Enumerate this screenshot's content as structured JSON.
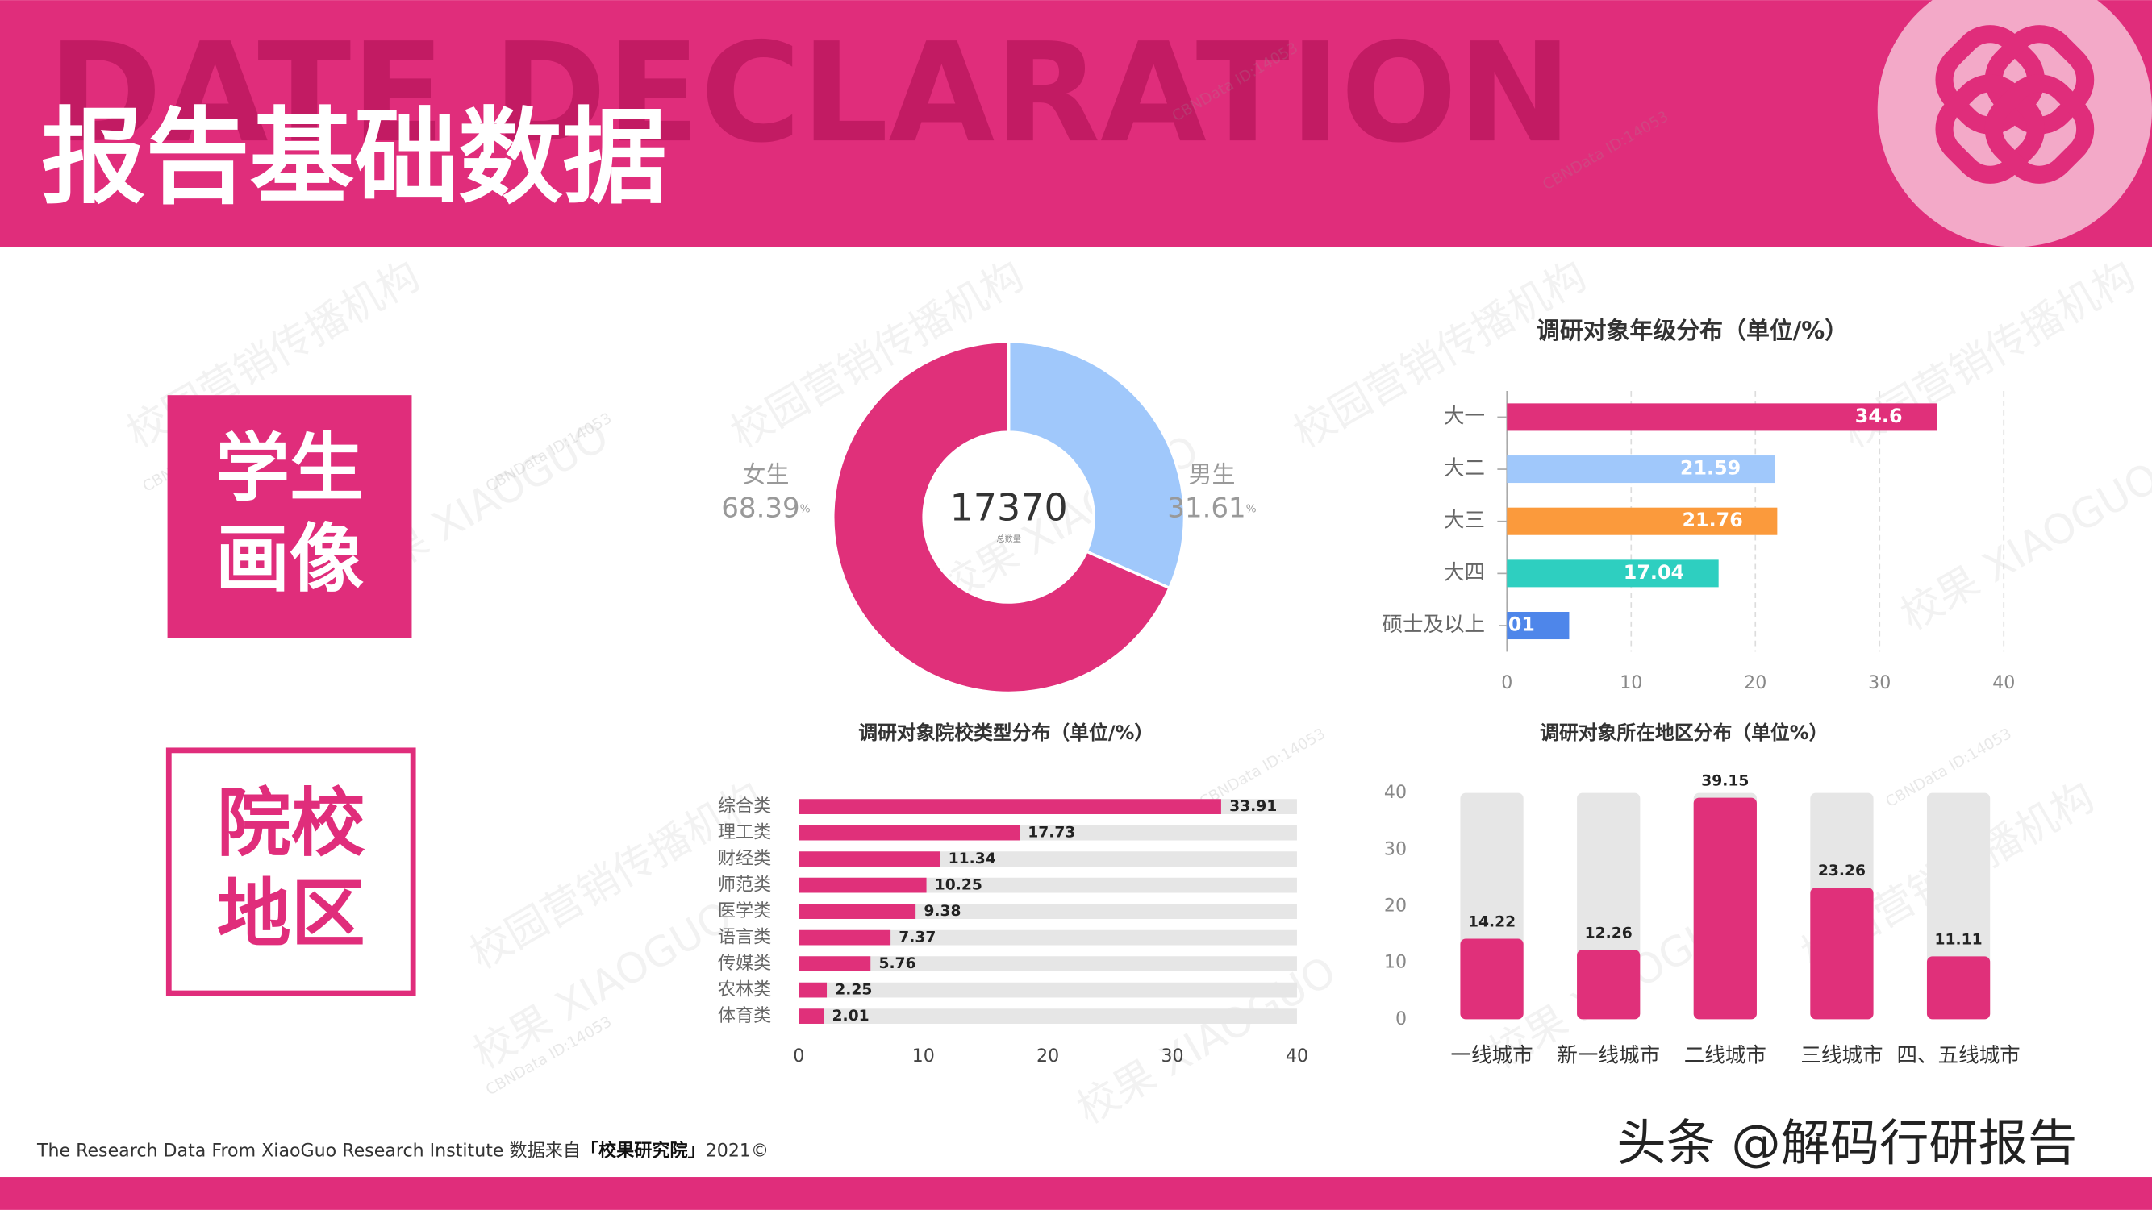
{
  "header": {
    "background_text": "DATE DECLARATION",
    "title": "报告基础数据"
  },
  "sections": [
    {
      "lines": [
        "学生",
        "画像"
      ],
      "style": "filled"
    },
    {
      "lines": [
        "院校",
        "地区"
      ],
      "style": "outline"
    }
  ],
  "chart_data": [
    {
      "type": "donut",
      "categories": [
        "女生",
        "男生"
      ],
      "values": [
        68.39,
        31.61
      ],
      "value_suffix": "%",
      "colors": [
        "#e0307a",
        "#a0c8fb"
      ],
      "total": 17370,
      "total_label": "总数量"
    },
    {
      "type": "hbar",
      "title": "调研对象年级分布（单位/%）",
      "categories": [
        "大一",
        "大二",
        "大三",
        "大四",
        "硕士及以上"
      ],
      "values": [
        34.6,
        21.59,
        21.76,
        17.04,
        5.01
      ],
      "colors": [
        "#e0307a",
        "#a0c8fb",
        "#fb9a3c",
        "#2ecfc0",
        "#4e86ea"
      ],
      "xlim": [
        0,
        40
      ],
      "xticks": [
        0,
        10,
        20,
        30,
        40
      ],
      "grid": true
    },
    {
      "type": "hbar-track",
      "title": "调研对象院校类型分布（单位/%）",
      "categories": [
        "综合类",
        "理工类",
        "财经类",
        "师范类",
        "医学类",
        "语言类",
        "传媒类",
        "农林类",
        "体育类"
      ],
      "values": [
        33.91,
        17.73,
        11.34,
        10.25,
        9.38,
        7.37,
        5.76,
        2.25,
        2.01
      ],
      "color": "#e0307a",
      "track_color": "#e6e6e6",
      "xlim": [
        0,
        40
      ],
      "xticks": [
        0,
        10,
        20,
        30,
        40
      ],
      "grid": false
    },
    {
      "type": "column-track",
      "title": "调研对象所在地区分布（单位%）",
      "categories": [
        "一线城市",
        "新一线城市",
        "二线城市",
        "三线城市",
        "四、五线城市"
      ],
      "values": [
        14.22,
        12.26,
        39.15,
        23.26,
        11.11
      ],
      "color": "#e0307a",
      "track_color": "#e6e6e6",
      "ylim": [
        0,
        40
      ],
      "yticks": [
        0,
        10,
        20,
        30,
        40
      ],
      "grid": false
    }
  ],
  "footer": {
    "text": "The Research Data From XiaoGuo Research Institute 数据来自",
    "source": "「校果研究院」",
    "year": "2021©"
  },
  "watermarks": [
    "CBNData ID:14053",
    "校园营销传播机构",
    "校果 XIAOGUO",
    "头条 @解码行研报告"
  ]
}
